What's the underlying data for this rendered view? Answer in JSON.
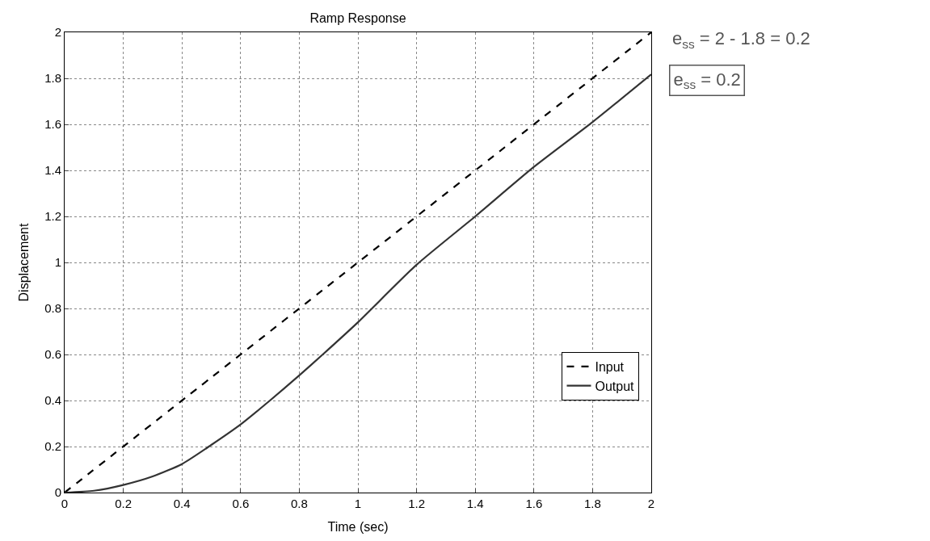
{
  "chart_data": {
    "type": "line",
    "title": "Ramp Response",
    "xlabel": "Time (sec)",
    "ylabel": "Displacement",
    "xlim": [
      0,
      2
    ],
    "xticks": [
      0,
      0.2,
      0.4,
      0.6,
      0.8,
      1,
      1.2,
      1.4,
      1.6,
      1.8,
      2
    ],
    "ylim": [
      0,
      2
    ],
    "yticks": [
      0,
      0.2,
      0.4,
      0.6,
      0.8,
      1,
      1.2,
      1.4,
      1.6,
      1.8,
      2
    ],
    "grid": true,
    "legend": "bottom right",
    "series": [
      {
        "name": "Input",
        "color": "#000000",
        "line_style": "dashed",
        "x": [
          0,
          0.5,
          1,
          1.5,
          2
        ],
        "values": [
          0,
          0.5,
          1,
          1.5,
          2
        ]
      },
      {
        "name": "Output",
        "color": "#333333",
        "line_style": "solid",
        "x": [
          0,
          0.1,
          0.2,
          0.3,
          0.4,
          0.5,
          0.6,
          0.7,
          0.8,
          0.88,
          1,
          1.2,
          1.4,
          1.6,
          1.8,
          2
        ],
        "values": [
          0,
          0.008,
          0.033,
          0.07,
          0.124,
          0.207,
          0.296,
          0.4,
          0.509,
          0.6,
          0.74,
          0.99,
          1.2,
          1.415,
          1.61,
          1.817
        ]
      }
    ],
    "annotations": [
      "e$_{ss}$ = 2 - 1.8 = 0.2",
      "e$_{ss}$ = 0.2"
    ]
  }
}
